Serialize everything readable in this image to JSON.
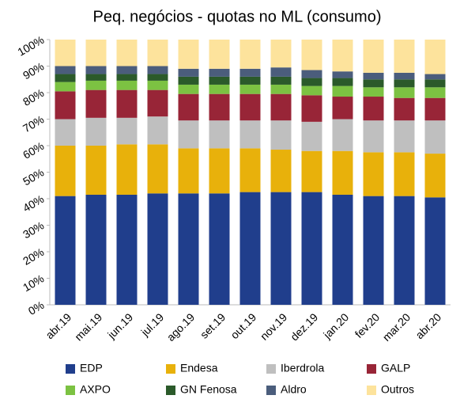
{
  "chart_data": {
    "type": "stacked_bar",
    "title": "Peq. negócios - quotas no ML (consumo)",
    "categories": [
      "abr.19",
      "mai.19",
      "jun.19",
      "jul.19",
      "ago.19",
      "set.19",
      "out.19",
      "nov.19",
      "dez.19",
      "jan.20",
      "fev.20",
      "mar.20",
      "abr.20"
    ],
    "series": [
      {
        "name": "EDP",
        "color": "#203e8c",
        "values": [
          41,
          41.5,
          41.5,
          42,
          42,
          42,
          42.5,
          42.5,
          42.5,
          41.5,
          41,
          41,
          40.5
        ]
      },
      {
        "name": "Endesa",
        "color": "#e8b10b",
        "values": [
          19,
          18.5,
          19,
          18.5,
          17,
          17,
          16.5,
          16,
          15.5,
          16.5,
          16.5,
          16.5,
          16.5
        ]
      },
      {
        "name": "Iberdrola",
        "color": "#bfbfbf",
        "values": [
          10,
          10.5,
          10,
          10.5,
          10.5,
          10.5,
          10.5,
          11,
          11,
          12,
          12,
          12,
          12.5
        ]
      },
      {
        "name": "GALP",
        "color": "#982537",
        "values": [
          10.5,
          10.5,
          10.5,
          10,
          10,
          10,
          10,
          10,
          10,
          8.5,
          9,
          8.5,
          8.5
        ]
      },
      {
        "name": "AXPO",
        "color": "#7cc242",
        "values": [
          3.5,
          3.5,
          3.5,
          3.5,
          3.5,
          3.5,
          3.5,
          3.5,
          3.5,
          4,
          3.5,
          4,
          4
        ]
      },
      {
        "name": "GN Fenosa",
        "color": "#2b5a2a",
        "values": [
          3,
          2.5,
          2.5,
          2.5,
          3,
          3,
          3,
          3,
          3,
          3,
          3,
          3,
          3
        ]
      },
      {
        "name": "Aldro",
        "color": "#4b5d7c",
        "values": [
          3,
          3,
          3,
          3,
          3,
          3,
          3,
          3.5,
          3,
          2.5,
          2.5,
          2.5,
          2
        ]
      },
      {
        "name": "Outros",
        "color": "#fde39c",
        "values": [
          10,
          10,
          10,
          10,
          11,
          11,
          11,
          10.5,
          11.5,
          12,
          12.5,
          12.5,
          13
        ]
      }
    ],
    "ylim": [
      0,
      100
    ],
    "yticks": [
      {
        "value": 0,
        "label": "0%"
      },
      {
        "value": 10,
        "label": "10%"
      },
      {
        "value": 20,
        "label": "20%"
      },
      {
        "value": 30,
        "label": "30%"
      },
      {
        "value": 40,
        "label": "40%"
      },
      {
        "value": 50,
        "label": "50%"
      },
      {
        "value": 60,
        "label": "60%"
      },
      {
        "value": 70,
        "label": "70%"
      },
      {
        "value": 80,
        "label": "80%"
      },
      {
        "value": 90,
        "label": "90%"
      },
      {
        "value": 100,
        "label": "100%"
      }
    ],
    "legend": "bottom"
  }
}
